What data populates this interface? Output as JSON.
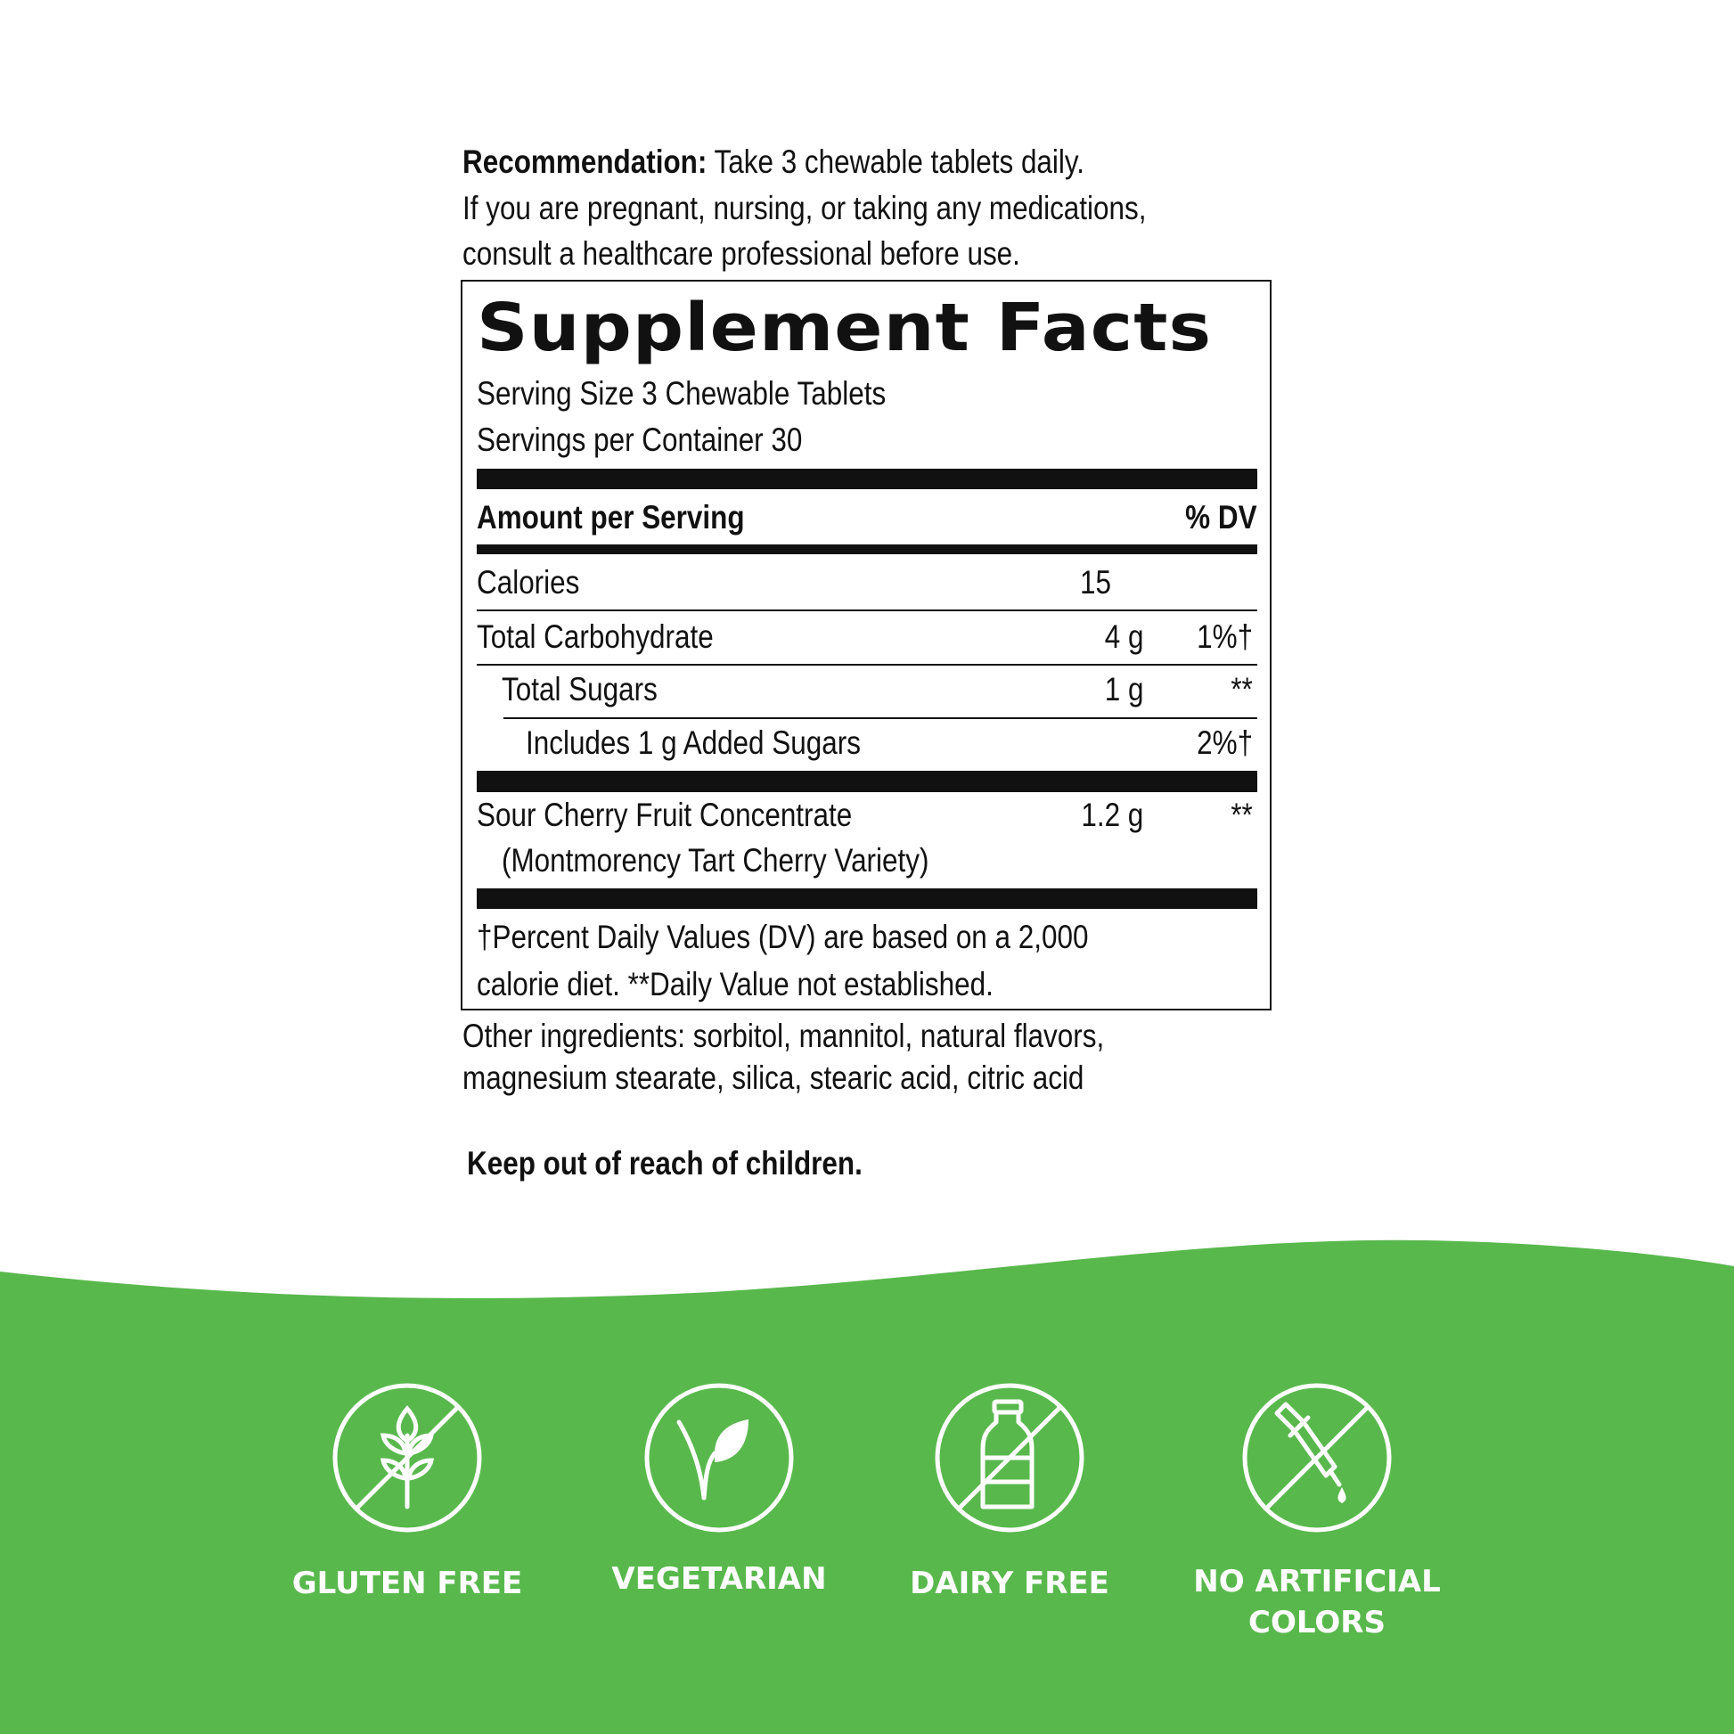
{
  "recommendation": {
    "label": "Recommendation:",
    "text": "Take 3 chewable tablets daily.",
    "warning_line1": "If you are pregnant, nursing, or taking any medications,",
    "warning_line2": "consult a healthcare professional before use."
  },
  "facts": {
    "title": "Supplement Facts",
    "serving_size": "Serving Size 3 Chewable Tablets",
    "servings_per_container": "Servings per Container 30",
    "header_amount": "Amount per Serving",
    "header_dv": "% DV",
    "rows": [
      {
        "name": "Calories",
        "amount": "15",
        "dv": ""
      },
      {
        "name": "Total Carbohydrate",
        "amount": "4 g",
        "dv": "1%†"
      },
      {
        "name": "Total Sugars",
        "amount": "1 g",
        "dv": "**"
      },
      {
        "name": "Includes 1 g Added Sugars",
        "amount": "",
        "dv": "2%†"
      },
      {
        "name": "Sour Cherry Fruit Concentrate",
        "sub": "(Montmorency Tart Cherry Variety)",
        "amount": "1.2 g",
        "dv": "**"
      }
    ],
    "footnote_line1": "†Percent Daily Values (DV) are based on a 2,000",
    "footnote_line2": "calorie diet. **Daily Value not established."
  },
  "other_ingredients": {
    "line1": "Other ingredients: sorbitol, mannitol, natural flavors,",
    "line2": "magnesium stearate, silica, stearic acid, citric acid"
  },
  "warning": "Keep out of reach of children.",
  "badges": [
    {
      "icon": "wheat-crossed-icon",
      "label": "GLUTEN FREE"
    },
    {
      "icon": "leaf-sprout-icon",
      "label": "VEGETARIAN"
    },
    {
      "icon": "milk-bottle-crossed-icon",
      "label": "DAIRY FREE"
    },
    {
      "icon": "dropper-crossed-icon",
      "label_line1": "NO ARTIFICIAL",
      "label_line2": "COLORS"
    }
  ],
  "colors": {
    "green": "#58b84c",
    "text": "#111111"
  }
}
